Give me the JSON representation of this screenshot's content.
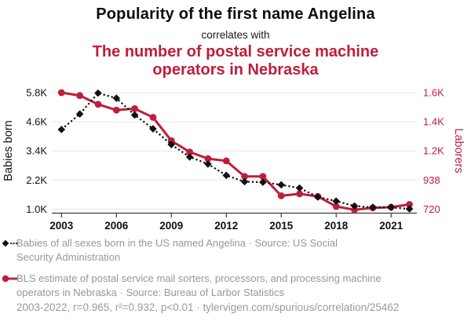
{
  "header": {
    "title": "Popularity of the first name Angelina",
    "connector": "correlates with",
    "subtitle": "The number of postal service machine operators in Nebraska",
    "subtitle_lines": [
      "The number of postal service machine",
      "operators in Nebraska"
    ]
  },
  "colors": {
    "accent_red": "#be1e3c",
    "series_black": "#121212",
    "legend_gray": "#979797",
    "gridline": "#e8e8e8",
    "axis_line": "#3c3c3c",
    "tick_text": "#111111"
  },
  "chart_data": {
    "type": "line",
    "x": [
      2003,
      2004,
      2005,
      2006,
      2007,
      2008,
      2009,
      2010,
      2011,
      2012,
      2013,
      2014,
      2015,
      2016,
      2017,
      2018,
      2019,
      2020,
      2021,
      2022
    ],
    "x_tick_labels": [
      "2003",
      "2006",
      "2009",
      "2012",
      "2015",
      "2018",
      "2021"
    ],
    "grid": true,
    "legend_position": "bottom",
    "left_axis": {
      "label": "Babies born",
      "tick_labels": [
        "5.8K",
        "4.6K",
        "3.4K",
        "2.2K",
        "1.0K"
      ],
      "tick_values": [
        5800,
        4600,
        3400,
        2200,
        1000
      ],
      "range": [
        1000,
        5800
      ]
    },
    "right_axis": {
      "label": "Laborers",
      "tick_labels": [
        "1.6K",
        "1.4K",
        "1.2K",
        "938",
        "720"
      ],
      "tick_values": [
        1600,
        1400,
        1200,
        938,
        720
      ],
      "range": [
        720,
        1600
      ]
    },
    "series": [
      {
        "name": "Babies of all sexes born in the US named Angelina",
        "axis": "left",
        "style": "dashed-diamond",
        "color": "#121212",
        "values": [
          4280,
          4920,
          5780,
          5570,
          4880,
          4310,
          3660,
          3150,
          2860,
          2390,
          2130,
          2110,
          2000,
          1870,
          1500,
          1330,
          1130,
          1070,
          1070,
          1010
        ]
      },
      {
        "name": "BLS estimate of postal service mail sorters, processors, and processing machine operators in Nebraska",
        "axis": "right",
        "style": "solid-circle",
        "color": "#be1e3c",
        "values": [
          1600,
          1580,
          1520,
          1480,
          1490,
          1430,
          1270,
          1190,
          1130,
          1110,
          970,
          970,
          820,
          835,
          815,
          740,
          715,
          730,
          735,
          755
        ]
      }
    ]
  },
  "legend": {
    "items": [
      {
        "marker": "black-diamond-dashed",
        "lines": [
          "Babies of all sexes born in the US named Angelina · Source: US Social",
          "Security Administration"
        ]
      },
      {
        "marker": "red-circle-solid",
        "lines": [
          "BLS estimate of postal service mail sorters, processors, and processing machine",
          "operators in Nebraska · Source: Bureau of Larbor Statistics"
        ]
      }
    ]
  },
  "footer": {
    "text": "2003-2022, r=0.965, r²=0.932, p<0.01 · tylervigen.com/spurious/correlation/25462"
  }
}
